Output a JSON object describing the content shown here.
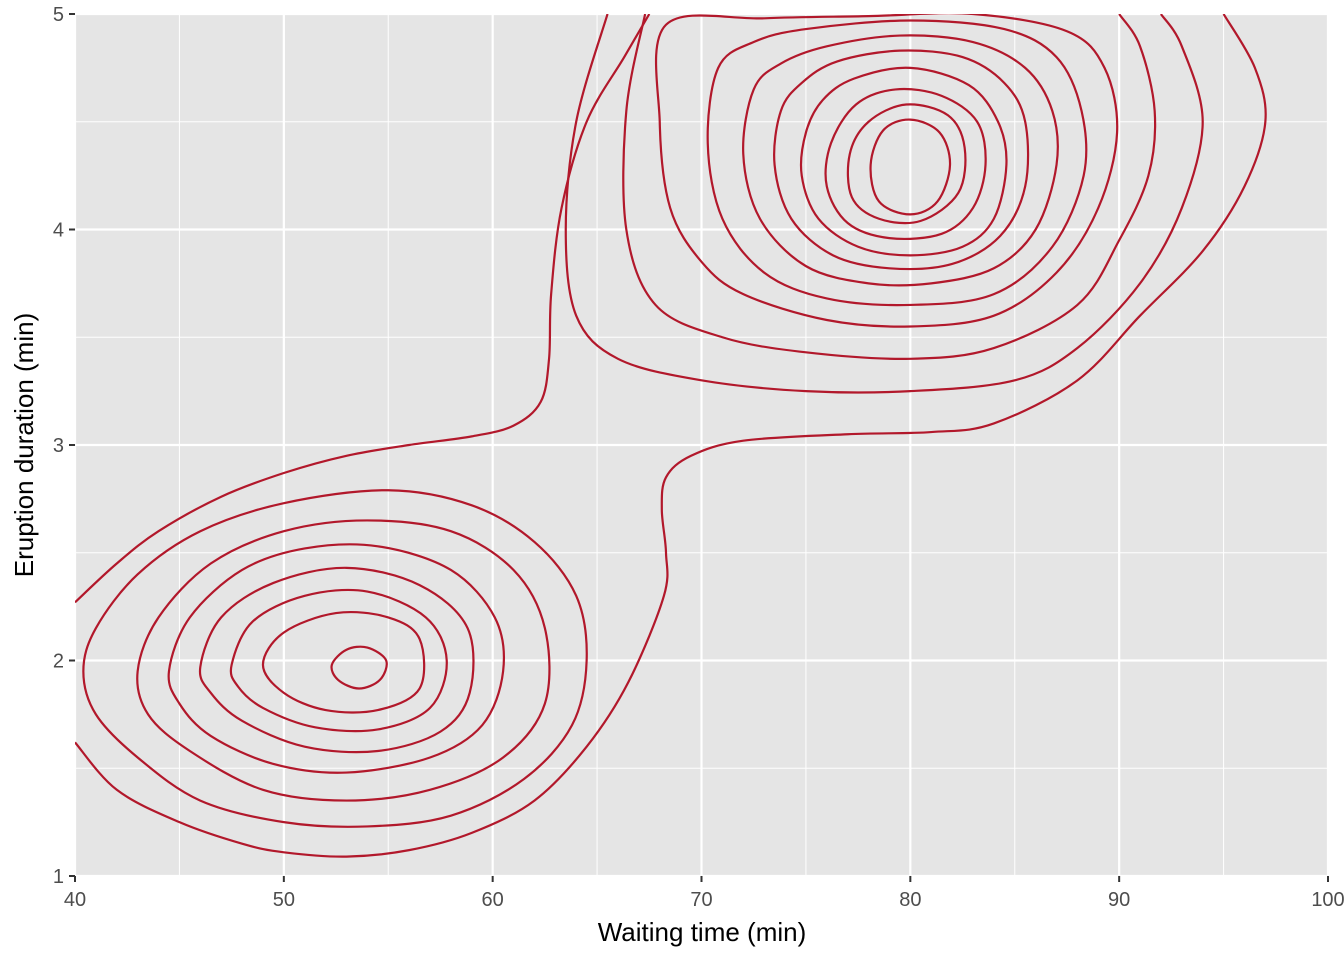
{
  "chart_data": {
    "type": "contour",
    "title": "",
    "xlabel": "Waiting time (min)",
    "ylabel": "Eruption duration (min)",
    "xlim": [
      40,
      100
    ],
    "ylim": [
      1,
      5
    ],
    "x_ticks": [
      40,
      50,
      60,
      70,
      80,
      90,
      100
    ],
    "y_ticks": [
      1,
      2,
      3,
      4,
      5
    ],
    "x_tick_labels": [
      "40",
      "50",
      "60",
      "70",
      "80",
      "90",
      "100"
    ],
    "y_tick_labels": [
      "1",
      "2",
      "3",
      "4",
      "5"
    ],
    "grid": true,
    "line_color": "#B2182B",
    "panel_background": "#E5E5E5",
    "grid_color": "#FFFFFF",
    "density_modes": [
      {
        "name": "",
        "x": 53.5,
        "y": 1.98
      },
      {
        "name": "",
        "x": 79.8,
        "y": 4.38
      }
    ],
    "contours": [
      {
        "level": 1,
        "points": [
          [
            40,
            2.27
          ],
          [
            42,
            2.45
          ],
          [
            44,
            2.6
          ],
          [
            47,
            2.76
          ],
          [
            50,
            2.87
          ],
          [
            53,
            2.95
          ],
          [
            56,
            3.0
          ],
          [
            59,
            3.04
          ],
          [
            61,
            3.09
          ],
          [
            62.3,
            3.2
          ],
          [
            62.7,
            3.4
          ],
          [
            62.8,
            3.7
          ],
          [
            63.3,
            4.1
          ],
          [
            64.5,
            4.5
          ],
          [
            66.3,
            4.8
          ],
          [
            67.5,
            5.0
          ]
        ]
      },
      {
        "level": 1,
        "points": [
          [
            40,
            1.62
          ],
          [
            42,
            1.4
          ],
          [
            45,
            1.25
          ],
          [
            48,
            1.15
          ],
          [
            50,
            1.11
          ],
          [
            53,
            1.09
          ],
          [
            56,
            1.12
          ],
          [
            59,
            1.2
          ],
          [
            62,
            1.35
          ],
          [
            64.5,
            1.6
          ],
          [
            66.5,
            1.9
          ],
          [
            68.2,
            2.3
          ],
          [
            68.3,
            2.5
          ],
          [
            68.1,
            2.7
          ],
          [
            68.3,
            2.85
          ],
          [
            69.5,
            2.95
          ],
          [
            72,
            3.02
          ],
          [
            77,
            3.05
          ],
          [
            81,
            3.06
          ],
          [
            84,
            3.1
          ],
          [
            88,
            3.3
          ],
          [
            91,
            3.6
          ],
          [
            94,
            3.9
          ],
          [
            96,
            4.2
          ],
          [
            97,
            4.5
          ],
          [
            96.5,
            4.75
          ],
          [
            95,
            5.0
          ]
        ]
      },
      {
        "level": 2,
        "points": [
          [
            65.5,
            5.0
          ],
          [
            64,
            4.5
          ],
          [
            63.5,
            4.0
          ],
          [
            64,
            3.6
          ],
          [
            66,
            3.4
          ],
          [
            70,
            3.3
          ],
          [
            75,
            3.25
          ],
          [
            80,
            3.25
          ],
          [
            85,
            3.3
          ],
          [
            88,
            3.45
          ],
          [
            91,
            3.75
          ],
          [
            93,
            4.1
          ],
          [
            94,
            4.5
          ],
          [
            93,
            4.85
          ],
          [
            92,
            5.0
          ]
        ]
      },
      {
        "level": 3,
        "points": [
          [
            67.3,
            5.0
          ],
          [
            66.4,
            4.55
          ],
          [
            66.4,
            4.0
          ],
          [
            67.8,
            3.65
          ],
          [
            71,
            3.5
          ],
          [
            75,
            3.43
          ],
          [
            80,
            3.4
          ],
          [
            84,
            3.45
          ],
          [
            88,
            3.65
          ],
          [
            90,
            3.95
          ],
          [
            91.4,
            4.25
          ],
          [
            91.7,
            4.55
          ],
          [
            91,
            4.85
          ],
          [
            90,
            5.0
          ]
        ]
      },
      {
        "level": 4,
        "points": [
          [
            68.3,
            4.95
          ],
          [
            68,
            4.5
          ],
          [
            68.5,
            4.1
          ],
          [
            70,
            3.85
          ],
          [
            72,
            3.7
          ],
          [
            76,
            3.58
          ],
          [
            80,
            3.55
          ],
          [
            84,
            3.6
          ],
          [
            87,
            3.8
          ],
          [
            89,
            4.1
          ],
          [
            89.9,
            4.45
          ],
          [
            89.3,
            4.75
          ],
          [
            87.5,
            4.92
          ],
          [
            83,
            5.0
          ],
          [
            78,
            4.99
          ],
          [
            73,
            4.98
          ],
          [
            68.3,
            4.95
          ]
        ]
      },
      {
        "level": 5,
        "points": [
          [
            70.8,
            4.75
          ],
          [
            70.3,
            4.4
          ],
          [
            71,
            4.05
          ],
          [
            73,
            3.8
          ],
          [
            76,
            3.68
          ],
          [
            80,
            3.65
          ],
          [
            84,
            3.7
          ],
          [
            86.8,
            3.92
          ],
          [
            88.3,
            4.25
          ],
          [
            88.2,
            4.55
          ],
          [
            87,
            4.8
          ],
          [
            84.5,
            4.93
          ],
          [
            80,
            4.97
          ],
          [
            75,
            4.93
          ],
          [
            72.5,
            4.87
          ],
          [
            70.8,
            4.75
          ]
        ]
      },
      {
        "level": 6,
        "points": [
          [
            72.5,
            4.65
          ],
          [
            72,
            4.35
          ],
          [
            72.8,
            4.05
          ],
          [
            75,
            3.83
          ],
          [
            78,
            3.75
          ],
          [
            81,
            3.75
          ],
          [
            84,
            3.82
          ],
          [
            86,
            4.0
          ],
          [
            87,
            4.3
          ],
          [
            86.8,
            4.55
          ],
          [
            85.5,
            4.75
          ],
          [
            83,
            4.87
          ],
          [
            79.5,
            4.9
          ],
          [
            76,
            4.85
          ],
          [
            73.8,
            4.77
          ],
          [
            72.5,
            4.65
          ]
        ]
      },
      {
        "level": 7,
        "points": [
          [
            73.8,
            4.55
          ],
          [
            73.5,
            4.3
          ],
          [
            74.3,
            4.05
          ],
          [
            76.3,
            3.88
          ],
          [
            79,
            3.82
          ],
          [
            82,
            3.84
          ],
          [
            84.3,
            3.97
          ],
          [
            85.5,
            4.2
          ],
          [
            85.5,
            4.5
          ],
          [
            84.5,
            4.68
          ],
          [
            82.5,
            4.8
          ],
          [
            79.5,
            4.83
          ],
          [
            76.5,
            4.78
          ],
          [
            74.8,
            4.68
          ],
          [
            73.8,
            4.55
          ]
        ]
      },
      {
        "level": 8,
        "points": [
          [
            75,
            4.45
          ],
          [
            74.8,
            4.25
          ],
          [
            75.6,
            4.05
          ],
          [
            77.5,
            3.92
          ],
          [
            80,
            3.88
          ],
          [
            82.5,
            3.92
          ],
          [
            84,
            4.05
          ],
          [
            84.6,
            4.3
          ],
          [
            84.2,
            4.5
          ],
          [
            82.8,
            4.67
          ],
          [
            80,
            4.75
          ],
          [
            77.3,
            4.7
          ],
          [
            75.8,
            4.6
          ],
          [
            75,
            4.45
          ]
        ]
      },
      {
        "level": 9,
        "points": [
          [
            76.2,
            4.4
          ],
          [
            76,
            4.2
          ],
          [
            77,
            4.03
          ],
          [
            79,
            3.96
          ],
          [
            81.5,
            3.98
          ],
          [
            83,
            4.1
          ],
          [
            83.6,
            4.3
          ],
          [
            83.2,
            4.5
          ],
          [
            81.5,
            4.62
          ],
          [
            79.3,
            4.65
          ],
          [
            77.4,
            4.58
          ],
          [
            76.2,
            4.4
          ]
        ]
      },
      {
        "level": 10,
        "points": [
          [
            77.1,
            4.35
          ],
          [
            77.2,
            4.15
          ],
          [
            78.5,
            4.05
          ],
          [
            80.5,
            4.04
          ],
          [
            82.3,
            4.17
          ],
          [
            82.6,
            4.38
          ],
          [
            81.8,
            4.53
          ],
          [
            79.8,
            4.58
          ],
          [
            78,
            4.5
          ],
          [
            77.1,
            4.35
          ]
        ]
      },
      {
        "level": 11,
        "points": [
          [
            78.1,
            4.3
          ],
          [
            78.5,
            4.13
          ],
          [
            80,
            4.07
          ],
          [
            81.3,
            4.13
          ],
          [
            81.9,
            4.3
          ],
          [
            81.4,
            4.45
          ],
          [
            80,
            4.51
          ],
          [
            78.7,
            4.46
          ],
          [
            78.1,
            4.3
          ]
        ]
      },
      {
        "level": 2,
        "points": [
          [
            40.4,
            1.95
          ],
          [
            41,
            2.15
          ],
          [
            43,
            2.4
          ],
          [
            46,
            2.6
          ],
          [
            50,
            2.73
          ],
          [
            55,
            2.79
          ],
          [
            59,
            2.72
          ],
          [
            62,
            2.55
          ],
          [
            64,
            2.3
          ],
          [
            64.5,
            2.0
          ],
          [
            63.8,
            1.7
          ],
          [
            61.5,
            1.45
          ],
          [
            58,
            1.28
          ],
          [
            54,
            1.23
          ],
          [
            50,
            1.25
          ],
          [
            46,
            1.35
          ],
          [
            43,
            1.55
          ],
          [
            41,
            1.75
          ],
          [
            40.4,
            1.95
          ]
        ]
      },
      {
        "level": 3,
        "points": [
          [
            43,
            1.95
          ],
          [
            44,
            2.2
          ],
          [
            46.5,
            2.45
          ],
          [
            50,
            2.6
          ],
          [
            54,
            2.65
          ],
          [
            58,
            2.6
          ],
          [
            61,
            2.42
          ],
          [
            62.5,
            2.15
          ],
          [
            62.5,
            1.8
          ],
          [
            60.5,
            1.55
          ],
          [
            57,
            1.4
          ],
          [
            53,
            1.35
          ],
          [
            49,
            1.4
          ],
          [
            45.5,
            1.58
          ],
          [
            43.5,
            1.75
          ],
          [
            43,
            1.95
          ]
        ]
      },
      {
        "level": 4,
        "points": [
          [
            44.5,
            1.95
          ],
          [
            45.5,
            2.2
          ],
          [
            48,
            2.42
          ],
          [
            51,
            2.52
          ],
          [
            54.5,
            2.53
          ],
          [
            58,
            2.42
          ],
          [
            60.1,
            2.2
          ],
          [
            60.5,
            1.95
          ],
          [
            59.5,
            1.7
          ],
          [
            57,
            1.55
          ],
          [
            53,
            1.48
          ],
          [
            49.5,
            1.52
          ],
          [
            46.5,
            1.65
          ],
          [
            45,
            1.8
          ],
          [
            44.5,
            1.95
          ]
        ]
      },
      {
        "level": 5,
        "points": [
          [
            46,
            1.97
          ],
          [
            47,
            2.2
          ],
          [
            49.5,
            2.36
          ],
          [
            53,
            2.43
          ],
          [
            56.5,
            2.35
          ],
          [
            58.8,
            2.15
          ],
          [
            58.9,
            1.85
          ],
          [
            57.5,
            1.67
          ],
          [
            54.5,
            1.58
          ],
          [
            51,
            1.6
          ],
          [
            48,
            1.72
          ],
          [
            46.5,
            1.85
          ],
          [
            46,
            1.97
          ]
        ]
      },
      {
        "level": 6,
        "points": [
          [
            47.5,
            1.98
          ],
          [
            48.5,
            2.18
          ],
          [
            51,
            2.3
          ],
          [
            54,
            2.32
          ],
          [
            56.8,
            2.2
          ],
          [
            57.8,
            2.0
          ],
          [
            57,
            1.78
          ],
          [
            54.5,
            1.68
          ],
          [
            51.5,
            1.69
          ],
          [
            49,
            1.78
          ],
          [
            47.8,
            1.88
          ],
          [
            47.5,
            1.98
          ]
        ]
      },
      {
        "level": 7,
        "points": [
          [
            49,
            1.98
          ],
          [
            50,
            2.13
          ],
          [
            52.5,
            2.22
          ],
          [
            55,
            2.2
          ],
          [
            56.5,
            2.1
          ],
          [
            56.5,
            1.87
          ],
          [
            54.5,
            1.77
          ],
          [
            52,
            1.77
          ],
          [
            50,
            1.85
          ],
          [
            49,
            1.98
          ]
        ]
      },
      {
        "level": 8,
        "points": [
          [
            52.3,
            1.98
          ],
          [
            53,
            2.05
          ],
          [
            54,
            2.06
          ],
          [
            54.9,
            2.0
          ],
          [
            54.6,
            1.91
          ],
          [
            53.6,
            1.87
          ],
          [
            52.6,
            1.91
          ],
          [
            52.3,
            1.98
          ]
        ]
      }
    ]
  }
}
